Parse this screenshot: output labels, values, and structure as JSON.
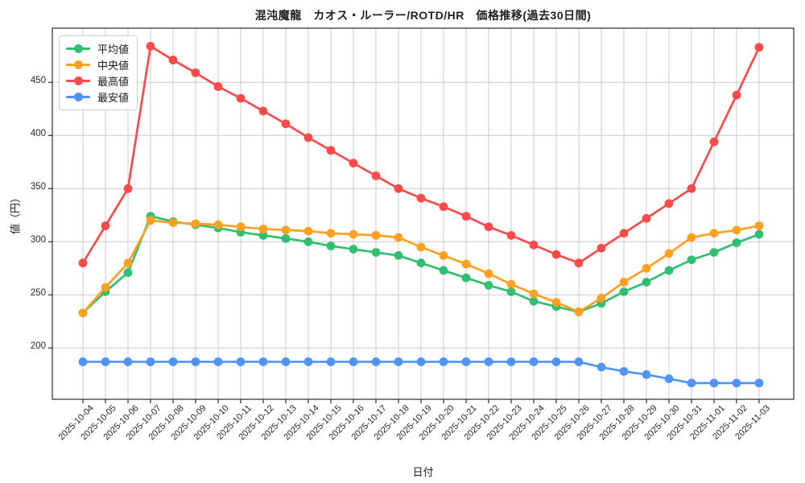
{
  "chart_data": {
    "type": "line",
    "title": "混沌魔龍　カオス・ルーラー/ROTD/HR　価格推移(過去30日間)",
    "xlabel": "日付",
    "ylabel": "値（円）",
    "x": [
      "2025-10-04",
      "2025-10-05",
      "2025-10-06",
      "2025-10-07",
      "2025-10-08",
      "2025-10-09",
      "2025-10-10",
      "2025-10-11",
      "2025-10-12",
      "2025-10-13",
      "2025-10-14",
      "2025-10-15",
      "2025-10-16",
      "2025-10-17",
      "2025-10-18",
      "2025-10-19",
      "2025-10-20",
      "2025-10-21",
      "2025-10-22",
      "2025-10-23",
      "2025-10-24",
      "2025-10-25",
      "2025-10-26",
      "2025-10-27",
      "2025-10-28",
      "2025-10-29",
      "2025-10-30",
      "2025-10-31",
      "2025-11-01",
      "2025-11-02",
      "2025-11-03"
    ],
    "series": [
      {
        "name": "平均値",
        "color": "#31bf72",
        "values": [
          233,
          253,
          271,
          324,
          319,
          316,
          313,
          309,
          306,
          303,
          300,
          296,
          293,
          290,
          287,
          280,
          273,
          266,
          259,
          253,
          244,
          239,
          234,
          242,
          253,
          262,
          273,
          283,
          290,
          299,
          307
        ]
      },
      {
        "name": "中央値",
        "color": "#ffa120",
        "values": [
          233,
          257,
          280,
          320,
          318,
          317,
          316,
          314,
          312,
          311,
          310,
          308,
          307,
          306,
          304,
          295,
          287,
          279,
          270,
          260,
          251,
          243,
          234,
          247,
          262,
          275,
          289,
          304,
          308,
          311,
          315
        ]
      },
      {
        "name": "最高値",
        "color": "#fa4b4b",
        "values": [
          280,
          315,
          350,
          484,
          471,
          459,
          446,
          435,
          423,
          411,
          398,
          386,
          374,
          362,
          350,
          341,
          333,
          324,
          314,
          306,
          297,
          288,
          280,
          294,
          308,
          322,
          336,
          350,
          394,
          438,
          483
        ]
      },
      {
        "name": "最安値",
        "color": "#4e94f3",
        "values": [
          187,
          187,
          187,
          187,
          187,
          187,
          187,
          187,
          187,
          187,
          187,
          187,
          187,
          187,
          187,
          187,
          187,
          187,
          187,
          187,
          187,
          187,
          187,
          182,
          178,
          175,
          171,
          167,
          167,
          167,
          167
        ]
      }
    ],
    "yticks": [
      200,
      250,
      300,
      350,
      400,
      450
    ],
    "ylim": [
      152,
      500
    ],
    "grid": true,
    "grid_color": "#cbcbcb",
    "axis_color": "#2b2b2b",
    "legend_position": "upper-left"
  }
}
